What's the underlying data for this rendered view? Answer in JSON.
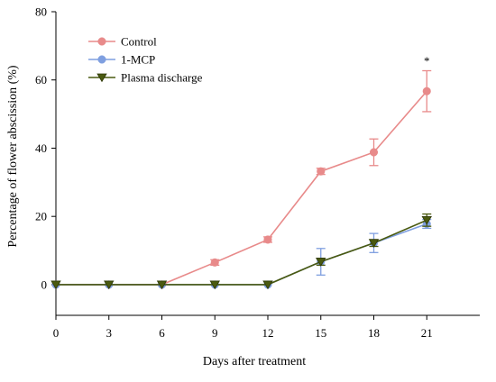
{
  "chart_data": {
    "type": "line",
    "xlabel": "Days after treatment",
    "ylabel": "Percentage of flower abscission (%)",
    "x": [
      0,
      3,
      6,
      9,
      12,
      15,
      18,
      21
    ],
    "xlim": [
      0,
      24
    ],
    "ylim": [
      -9,
      80
    ],
    "yticks": [
      0,
      20,
      40,
      60,
      80
    ],
    "grid": false,
    "legend_position": "top-left",
    "series": [
      {
        "name": "Control",
        "color": "#e88a8a",
        "marker": "circle",
        "values": [
          0,
          0,
          0,
          6.5,
          13.2,
          33.2,
          38.8,
          56.7
        ],
        "errors": [
          0,
          0,
          0,
          0.8,
          0.8,
          0.9,
          3.9,
          6.0
        ]
      },
      {
        "name": "1-MCP",
        "color": "#7f9fe0",
        "marker": "circle",
        "values": [
          0,
          0,
          0,
          0,
          0,
          6.7,
          12.2,
          17.8
        ],
        "errors": [
          0,
          0,
          0,
          0,
          0,
          3.9,
          2.8,
          1.3
        ]
      },
      {
        "name": "Plasma discharge",
        "color": "#4a5a10",
        "marker": "triangle-down",
        "values": [
          0,
          0,
          0,
          0,
          0,
          6.7,
          12.2,
          18.9
        ],
        "errors": [
          0,
          0,
          0,
          0,
          0,
          1.0,
          1.0,
          1.8
        ]
      }
    ],
    "annotations": [
      {
        "text": "*",
        "x": 21,
        "y": 65.5
      }
    ]
  }
}
